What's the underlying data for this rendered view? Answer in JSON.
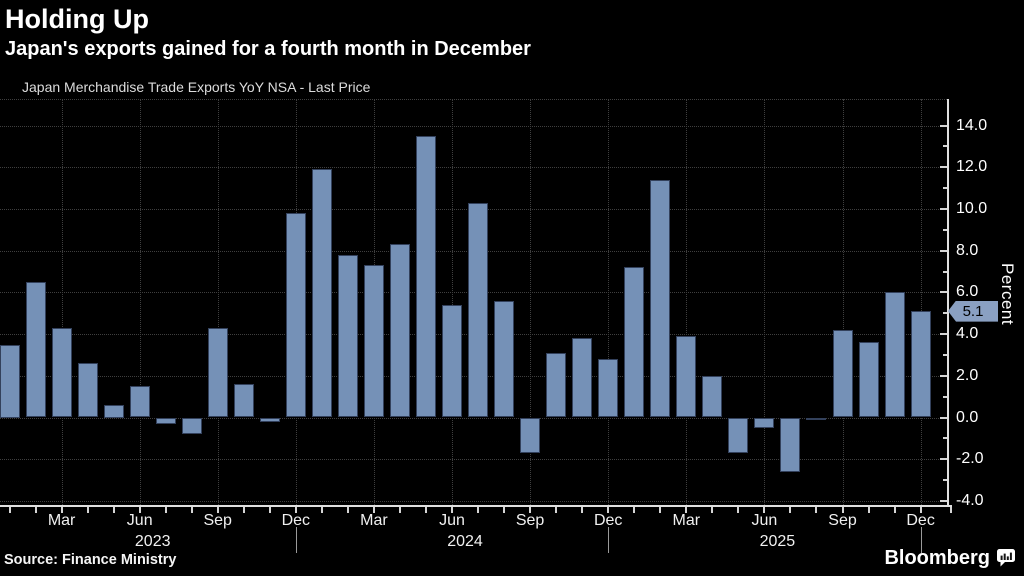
{
  "header": {
    "title": "Holding Up",
    "subtitle": "Japan's exports gained for a fourth month in December"
  },
  "legend": {
    "label": "Japan Merchandise Trade Exports YoY NSA - Last Price",
    "swatch_color": "#7591b7"
  },
  "footer": {
    "source": "Source: Finance Ministry",
    "brand": "Bloomberg",
    "brand_icon": "bloomberg-chart-bubble-icon"
  },
  "colors": {
    "background": "#000000",
    "bar_fill": "#7591b7",
    "bar_border": "#33415c",
    "grid": "#3f3f3f",
    "axis": "#e0e0e0",
    "text": "#ffffff",
    "badge_fill": "#8aa0c2",
    "badge_text": "#000000"
  },
  "chart_data": {
    "type": "bar",
    "title": "Holding Up",
    "subtitle": "Japan's exports gained for a fourth month in December",
    "series_name": "Japan Merchandise Trade Exports YoY NSA - Last Price",
    "xlabel": "",
    "ylabel": "Percent",
    "ylim": [
      -4.3,
      15.3
    ],
    "yticks_major": [
      14.0,
      12.0,
      10.0,
      8.0,
      6.0,
      4.0,
      2.0,
      0.0,
      -2.0,
      -4.0
    ],
    "ytick_minor_step": 1.0,
    "grid": true,
    "legend_position": "top-left",
    "x_quarter_labels": [
      "Mar",
      "Jun",
      "Sep",
      "Dec"
    ],
    "year_labels": [
      "2023",
      "2024",
      "2025"
    ],
    "last_price": 5.1,
    "last_price_label": "5.1",
    "months": [
      {
        "month": "Jan",
        "year": "2023",
        "value": 3.5
      },
      {
        "month": "Feb",
        "year": "2023",
        "value": 6.5
      },
      {
        "month": "Mar",
        "year": "2023",
        "value": 4.3
      },
      {
        "month": "Apr",
        "year": "2023",
        "value": 2.6
      },
      {
        "month": "May",
        "year": "2023",
        "value": 0.6
      },
      {
        "month": "Jun",
        "year": "2023",
        "value": 1.5
      },
      {
        "month": "Jul",
        "year": "2023",
        "value": -0.3
      },
      {
        "month": "Aug",
        "year": "2023",
        "value": -0.8
      },
      {
        "month": "Sep",
        "year": "2023",
        "value": 4.3
      },
      {
        "month": "Oct",
        "year": "2023",
        "value": 1.6
      },
      {
        "month": "Nov",
        "year": "2023",
        "value": -0.2
      },
      {
        "month": "Dec",
        "year": "2023",
        "value": 9.8
      },
      {
        "month": "Jan",
        "year": "2024",
        "value": 11.9
      },
      {
        "month": "Feb",
        "year": "2024",
        "value": 7.8
      },
      {
        "month": "Mar",
        "year": "2024",
        "value": 7.3
      },
      {
        "month": "Apr",
        "year": "2024",
        "value": 8.3
      },
      {
        "month": "May",
        "year": "2024",
        "value": 13.5
      },
      {
        "month": "Jun",
        "year": "2024",
        "value": 5.4
      },
      {
        "month": "Jul",
        "year": "2024",
        "value": 10.3
      },
      {
        "month": "Aug",
        "year": "2024",
        "value": 5.6
      },
      {
        "month": "Sep",
        "year": "2024",
        "value": -1.7
      },
      {
        "month": "Oct",
        "year": "2024",
        "value": 3.1
      },
      {
        "month": "Nov",
        "year": "2024",
        "value": 3.8
      },
      {
        "month": "Dec",
        "year": "2024",
        "value": 2.8
      },
      {
        "month": "Jan",
        "year": "2025",
        "value": 7.2
      },
      {
        "month": "Feb",
        "year": "2025",
        "value": 11.4
      },
      {
        "month": "Mar",
        "year": "2025",
        "value": 3.9
      },
      {
        "month": "Apr",
        "year": "2025",
        "value": 2.0
      },
      {
        "month": "May",
        "year": "2025",
        "value": -1.7
      },
      {
        "month": "Jun",
        "year": "2025",
        "value": -0.5
      },
      {
        "month": "Jul",
        "year": "2025",
        "value": -2.6
      },
      {
        "month": "Aug",
        "year": "2025",
        "value": -0.1
      },
      {
        "month": "Sep",
        "year": "2025",
        "value": 4.2
      },
      {
        "month": "Oct",
        "year": "2025",
        "value": 3.6
      },
      {
        "month": "Nov",
        "year": "2025",
        "value": 6.0
      },
      {
        "month": "Dec",
        "year": "2025",
        "value": 5.1
      }
    ]
  }
}
